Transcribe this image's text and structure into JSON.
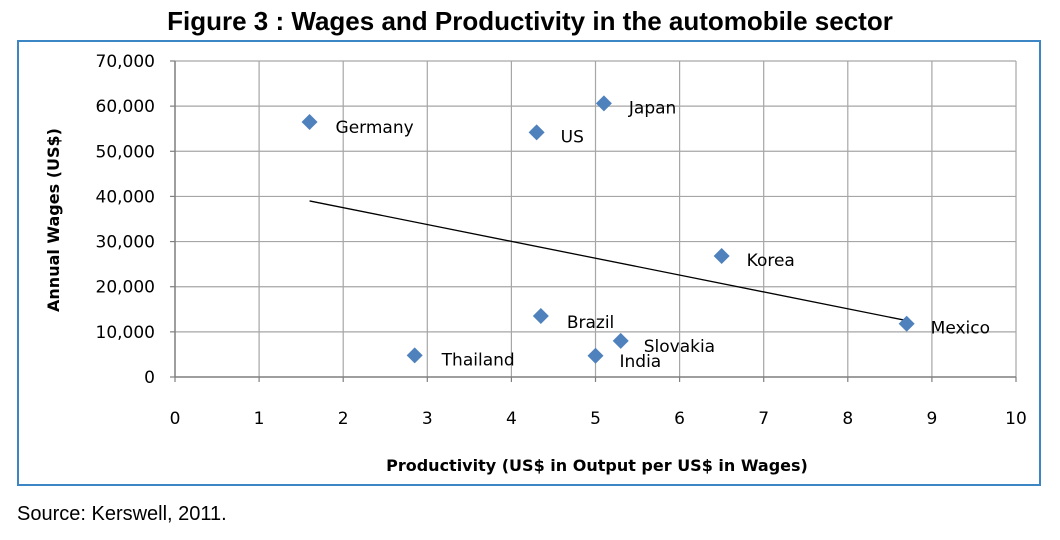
{
  "figure": {
    "title": "Figure 3 : Wages and Productivity in the automobile sector",
    "source": "Source: Kerswell, 2011."
  },
  "colors": {
    "frame": "#3d86c6",
    "marker": "#4f81bd",
    "grid": "#a6a6a6",
    "trendline": "#000000"
  },
  "chart_data": {
    "type": "scatter",
    "title": "Figure 3 : Wages and Productivity in the automobile sector",
    "xlabel": "Productivity (US$ in Output per US$ in Wages)",
    "ylabel": "Annual Wages (US$)",
    "xlim": [
      0,
      10
    ],
    "ylim": [
      0,
      70000
    ],
    "x_ticks": [
      0,
      1,
      2,
      3,
      4,
      5,
      6,
      7,
      8,
      9,
      10
    ],
    "x_tick_labels": [
      "0",
      "1",
      "2",
      "3",
      "4",
      "5",
      "6",
      "7",
      "8",
      "9",
      "10"
    ],
    "y_ticks": [
      0,
      10000,
      20000,
      30000,
      40000,
      50000,
      60000,
      70000
    ],
    "y_tick_labels": [
      "0",
      "10,000",
      "20,000",
      "30,000",
      "40,000",
      "50,000",
      "60,000",
      "70,000"
    ],
    "grid": true,
    "legend": "none",
    "marker": "diamond",
    "points": [
      {
        "label": "Germany",
        "x": 1.6,
        "y": 56500
      },
      {
        "label": "Japan",
        "x": 5.1,
        "y": 60600
      },
      {
        "label": "US",
        "x": 4.3,
        "y": 54200
      },
      {
        "label": "Korea",
        "x": 6.5,
        "y": 26800
      },
      {
        "label": "Brazil",
        "x": 4.35,
        "y": 13500
      },
      {
        "label": "Mexico",
        "x": 8.7,
        "y": 11800
      },
      {
        "label": "Slovakia",
        "x": 5.3,
        "y": 8000
      },
      {
        "label": "Thailand",
        "x": 2.85,
        "y": 4800
      },
      {
        "label": "India",
        "x": 5.0,
        "y": 4700
      }
    ],
    "trendline": {
      "type": "linear",
      "from": {
        "x": 1.6,
        "y": 39000
      },
      "to": {
        "x": 8.7,
        "y": 12500
      }
    }
  }
}
